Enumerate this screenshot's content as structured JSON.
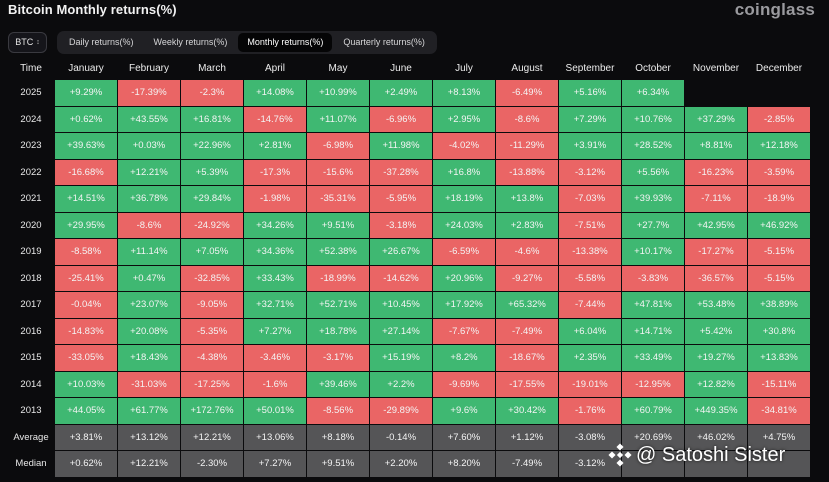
{
  "header": {
    "title": "Bitcoin Monthly returns(%)",
    "logo": "coinglass"
  },
  "controls": {
    "asset_selector": {
      "value": "BTC"
    },
    "tabs": [
      {
        "label": "Daily returns(%)",
        "active": false
      },
      {
        "label": "Weekly returns(%)",
        "active": false
      },
      {
        "label": "Monthly returns(%)",
        "active": true
      },
      {
        "label": "Quarterly returns(%)",
        "active": false
      }
    ]
  },
  "colors": {
    "positive": "#3fb872",
    "negative": "#ea6565",
    "summary": "#555557"
  },
  "table": {
    "corner_label": "Time",
    "months": [
      "January",
      "February",
      "March",
      "April",
      "May",
      "June",
      "July",
      "August",
      "September",
      "October",
      "November",
      "December"
    ],
    "rows": [
      {
        "year": "2025",
        "values": [
          "+9.29%",
          "-17.39%",
          "-2.3%",
          "+14.08%",
          "+10.99%",
          "+2.49%",
          "+8.13%",
          "-6.49%",
          "+5.16%",
          "+6.34%",
          "",
          ""
        ]
      },
      {
        "year": "2024",
        "values": [
          "+0.62%",
          "+43.55%",
          "+16.81%",
          "-14.76%",
          "+11.07%",
          "-6.96%",
          "+2.95%",
          "-8.6%",
          "+7.29%",
          "+10.76%",
          "+37.29%",
          "-2.85%"
        ]
      },
      {
        "year": "2023",
        "values": [
          "+39.63%",
          "+0.03%",
          "+22.96%",
          "+2.81%",
          "-6.98%",
          "+11.98%",
          "-4.02%",
          "-11.29%",
          "+3.91%",
          "+28.52%",
          "+8.81%",
          "+12.18%"
        ]
      },
      {
        "year": "2022",
        "values": [
          "-16.68%",
          "+12.21%",
          "+5.39%",
          "-17.3%",
          "-15.6%",
          "-37.28%",
          "+16.8%",
          "-13.88%",
          "-3.12%",
          "+5.56%",
          "-16.23%",
          "-3.59%"
        ]
      },
      {
        "year": "2021",
        "values": [
          "+14.51%",
          "+36.78%",
          "+29.84%",
          "-1.98%",
          "-35.31%",
          "-5.95%",
          "+18.19%",
          "+13.8%",
          "-7.03%",
          "+39.93%",
          "-7.11%",
          "-18.9%"
        ]
      },
      {
        "year": "2020",
        "values": [
          "+29.95%",
          "-8.6%",
          "-24.92%",
          "+34.26%",
          "+9.51%",
          "-3.18%",
          "+24.03%",
          "+2.83%",
          "-7.51%",
          "+27.7%",
          "+42.95%",
          "+46.92%"
        ]
      },
      {
        "year": "2019",
        "values": [
          "-8.58%",
          "+11.14%",
          "+7.05%",
          "+34.36%",
          "+52.38%",
          "+26.67%",
          "-6.59%",
          "-4.6%",
          "-13.38%",
          "+10.17%",
          "-17.27%",
          "-5.15%"
        ]
      },
      {
        "year": "2018",
        "values": [
          "-25.41%",
          "+0.47%",
          "-32.85%",
          "+33.43%",
          "-18.99%",
          "-14.62%",
          "+20.96%",
          "-9.27%",
          "-5.58%",
          "-3.83%",
          "-36.57%",
          "-5.15%"
        ]
      },
      {
        "year": "2017",
        "values": [
          "-0.04%",
          "+23.07%",
          "-9.05%",
          "+32.71%",
          "+52.71%",
          "+10.45%",
          "+17.92%",
          "+65.32%",
          "-7.44%",
          "+47.81%",
          "+53.48%",
          "+38.89%"
        ]
      },
      {
        "year": "2016",
        "values": [
          "-14.83%",
          "+20.08%",
          "-5.35%",
          "+7.27%",
          "+18.78%",
          "+27.14%",
          "-7.67%",
          "-7.49%",
          "+6.04%",
          "+14.71%",
          "+5.42%",
          "+30.8%"
        ]
      },
      {
        "year": "2015",
        "values": [
          "-33.05%",
          "+18.43%",
          "-4.38%",
          "-3.46%",
          "-3.17%",
          "+15.19%",
          "+8.2%",
          "-18.67%",
          "+2.35%",
          "+33.49%",
          "+19.27%",
          "+13.83%"
        ]
      },
      {
        "year": "2014",
        "values": [
          "+10.03%",
          "-31.03%",
          "-17.25%",
          "-1.6%",
          "+39.46%",
          "+2.2%",
          "-9.69%",
          "-17.55%",
          "-19.01%",
          "-12.95%",
          "+12.82%",
          "-15.11%"
        ]
      },
      {
        "year": "2013",
        "values": [
          "+44.05%",
          "+61.77%",
          "+172.76%",
          "+50.01%",
          "-8.56%",
          "-29.89%",
          "+9.6%",
          "+30.42%",
          "-1.76%",
          "+60.79%",
          "+449.35%",
          "-34.81%"
        ]
      }
    ],
    "summary_rows": [
      {
        "label": "Average",
        "values": [
          "+3.81%",
          "+13.12%",
          "+12.21%",
          "+13.06%",
          "+8.18%",
          "-0.14%",
          "+7.60%",
          "+1.12%",
          "-3.08%",
          "+20.69%",
          "+46.02%",
          "+4.75%"
        ]
      },
      {
        "label": "Median",
        "values": [
          "+0.62%",
          "+12.21%",
          "-2.30%",
          "+7.27%",
          "+9.51%",
          "+2.20%",
          "+8.20%",
          "-7.49%",
          "-3.12%",
          "",
          "",
          ""
        ]
      }
    ]
  },
  "watermark": {
    "text": "@ Satoshi Sister",
    "icon": "binance-logo-icon"
  }
}
